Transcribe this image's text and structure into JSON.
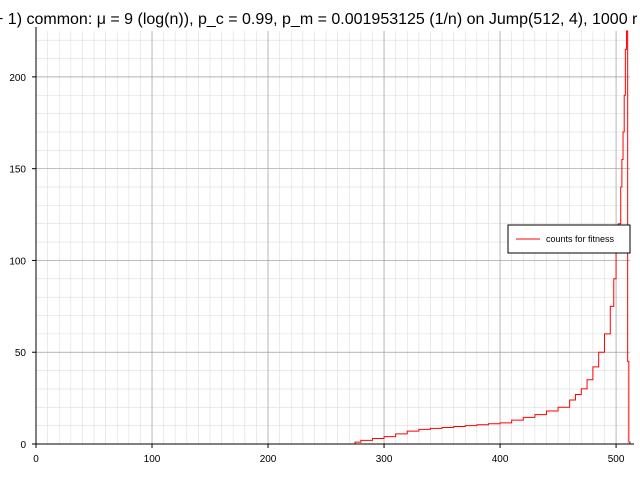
{
  "chart_data": {
    "type": "line",
    "title": "+ 1) common: μ = 9 (log(n)), p_c = 0.99, p_m = 0.001953125 (1/n) on Jump(512, 4), 1000 r",
    "xlabel": "",
    "ylabel": "",
    "xlim": [
      0,
      512
    ],
    "ylim": [
      0,
      225
    ],
    "x_ticks": [
      0,
      100,
      200,
      300,
      400,
      500
    ],
    "y_ticks": [
      0,
      50,
      100,
      150,
      200
    ],
    "grid": true,
    "legend_position": "right-middle",
    "colors": {
      "series": "#ff0000",
      "grid_major": "#a0a0a0",
      "grid_minor": "#dddddd"
    },
    "series": [
      {
        "name": "counts for fitness",
        "x": [
          0,
          270,
          275,
          280,
          290,
          300,
          310,
          320,
          330,
          340,
          350,
          360,
          370,
          380,
          390,
          400,
          410,
          420,
          430,
          440,
          450,
          460,
          465,
          470,
          475,
          480,
          485,
          490,
          495,
          498,
          500,
          502,
          504,
          505,
          506,
          507,
          508,
          509,
          510,
          511,
          512
        ],
        "y": [
          0,
          0,
          1,
          2,
          3,
          4,
          5.5,
          7,
          8,
          8.5,
          9,
          9.5,
          10,
          10.5,
          11,
          11.5,
          13,
          14.5,
          16,
          18,
          20,
          24,
          27,
          30,
          35,
          42,
          50,
          60,
          75,
          90,
          105,
          120,
          140,
          155,
          170,
          190,
          215,
          225,
          45,
          1,
          0
        ]
      }
    ]
  }
}
